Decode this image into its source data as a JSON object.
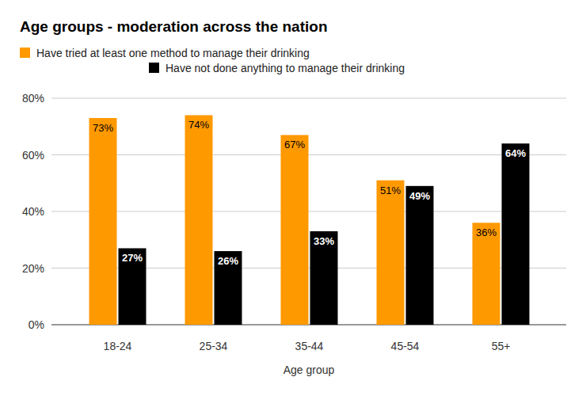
{
  "chart_data": {
    "type": "bar",
    "title": "Age groups - moderation across the nation",
    "x_label": "Age group",
    "categories": [
      "18-24",
      "25-34",
      "35-44",
      "45-54",
      "55+"
    ],
    "series": [
      {
        "name": "Have tried at least one method to manage their drinking",
        "color": "#ff9900",
        "values": [
          73,
          74,
          67,
          51,
          36
        ],
        "value_labels": [
          "73%",
          "74%",
          "67%",
          "51%",
          "36%"
        ]
      },
      {
        "name": "Have not done anything to manage their drinking",
        "color": "#000000",
        "values": [
          27,
          26,
          33,
          49,
          64
        ],
        "value_labels": [
          "27%",
          "26%",
          "33%",
          "49%",
          "64%"
        ]
      }
    ],
    "ylim": [
      0,
      80
    ],
    "yticks": [
      {
        "value": 0,
        "label": "0%"
      },
      {
        "value": 20,
        "label": "20%"
      },
      {
        "value": 40,
        "label": "40%"
      },
      {
        "value": 60,
        "label": "60%"
      },
      {
        "value": 80,
        "label": "80%"
      }
    ],
    "grid": true,
    "data_labels": true,
    "legend": "top"
  }
}
